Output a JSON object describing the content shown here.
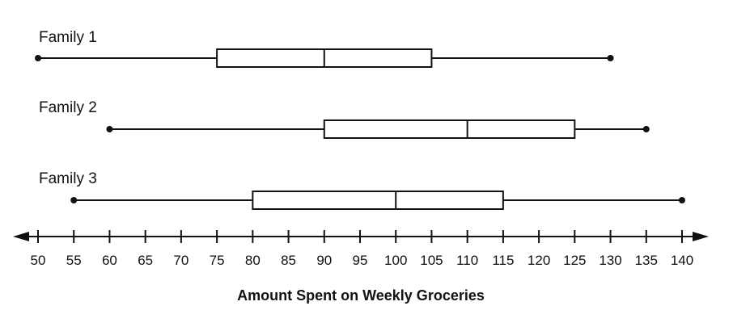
{
  "chart_data": {
    "type": "boxplot",
    "title": "",
    "xlabel": "Amount Spent on Weekly Groceries",
    "ylabel": "",
    "xlim": [
      50,
      140
    ],
    "tick_step": 5,
    "ticks": [
      "50",
      "55",
      "60",
      "65",
      "70",
      "75",
      "80",
      "85",
      "90",
      "95",
      "100",
      "105",
      "110",
      "115",
      "120",
      "125",
      "130",
      "135",
      "140"
    ],
    "series": [
      {
        "name": "Family 1",
        "min": 50,
        "q1": 75,
        "median": 90,
        "q3": 105,
        "max": 130
      },
      {
        "name": "Family 2",
        "min": 60,
        "q1": 90,
        "median": 110,
        "q3": 125,
        "max": 135
      },
      {
        "name": "Family 3",
        "min": 55,
        "q1": 80,
        "median": 100,
        "q3": 115,
        "max": 140
      }
    ],
    "grid": false,
    "axis_arrows": "both-ends"
  }
}
